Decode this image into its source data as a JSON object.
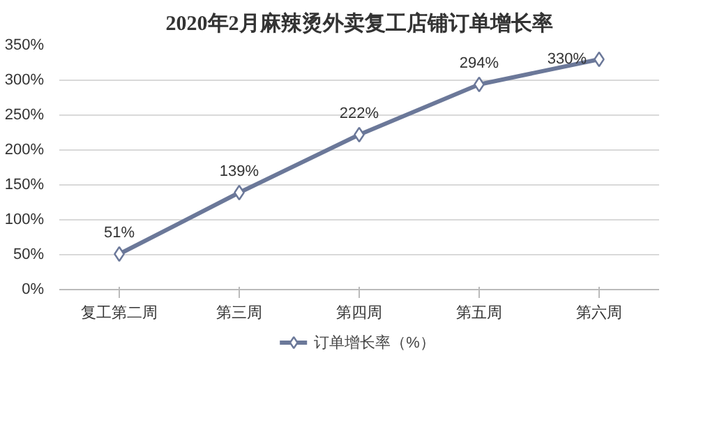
{
  "chart_data": {
    "type": "line",
    "title": "2020年2月麻辣烫外卖复工店铺订单增长率",
    "categories": [
      "复工第二周",
      "第三周",
      "第四周",
      "第五周",
      "第六周"
    ],
    "series": [
      {
        "name": "订单增长率（%）",
        "color": "#6b7899",
        "values": [
          51,
          139,
          222,
          294,
          330
        ],
        "value_labels": [
          "51%",
          "139%",
          "222%",
          "294%",
          "330%"
        ]
      }
    ],
    "ylim": [
      0,
      350
    ],
    "yticks": [
      {
        "value": 0,
        "label": "0%"
      },
      {
        "value": 50,
        "label": "50%"
      },
      {
        "value": 100,
        "label": "100%"
      },
      {
        "value": 150,
        "label": "150%"
      },
      {
        "value": 200,
        "label": "200%"
      },
      {
        "value": 250,
        "label": "250%"
      },
      {
        "value": 300,
        "label": "300%"
      },
      {
        "value": 350,
        "label": "350%"
      }
    ],
    "grid": "y",
    "legend": "bottom",
    "marker": "diamond",
    "line_style": "solid"
  }
}
